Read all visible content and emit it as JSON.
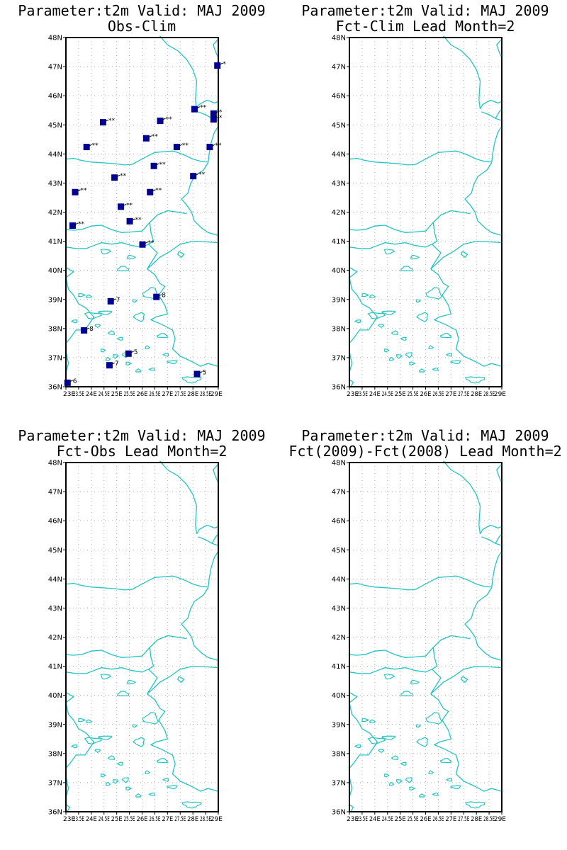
{
  "panels": [
    {
      "id": "obs-clim",
      "title_line1": "Parameter:t2m Valid: MAJ 2009",
      "title_line2": "Obs-Clim",
      "has_stations": true
    },
    {
      "id": "fct-clim",
      "title_line1": "Parameter:t2m Valid: MAJ 2009",
      "title_line2": "Fct-Clim Lead Month=2",
      "has_stations": false
    },
    {
      "id": "fct-obs",
      "title_line1": "Parameter:t2m Valid: MAJ 2009",
      "title_line2": "Fct-Obs Lead Month=2",
      "has_stations": false
    },
    {
      "id": "fct-diff",
      "title_line1": "Parameter:t2m Valid: MAJ 2009",
      "title_line2": "Fct(2009)-Fct(2008) Lead Month=2",
      "has_stations": false
    }
  ],
  "map": {
    "lat_labels": [
      "48N",
      "47N",
      "46N",
      "45N",
      "44N",
      "43N",
      "42N",
      "41N",
      "40N",
      "39N",
      "38N",
      "37N",
      "36N"
    ],
    "lon_labels": [
      "23E",
      "23.5E",
      "24E",
      "24.5E",
      "25E",
      "25.5E",
      "26E",
      "26.5E",
      "27E",
      "27.5E",
      "28E",
      "28.5E",
      "29E"
    ],
    "coast_color": "#22c5c5",
    "station_color": "#000090"
  },
  "stations": [
    {
      "lon": 28.95,
      "lat": 47.05,
      "label": "*"
    },
    {
      "lon": 28.05,
      "lat": 45.55,
      "label": "**"
    },
    {
      "lon": 28.8,
      "lat": 45.4,
      "label": "*"
    },
    {
      "lon": 28.8,
      "lat": 45.2,
      "label": "*"
    },
    {
      "lon": 24.45,
      "lat": 45.1,
      "label": "**"
    },
    {
      "lon": 26.7,
      "lat": 45.15,
      "label": "**"
    },
    {
      "lon": 26.15,
      "lat": 44.55,
      "label": "**"
    },
    {
      "lon": 23.8,
      "lat": 44.25,
      "label": "**"
    },
    {
      "lon": 27.35,
      "lat": 44.25,
      "label": "**"
    },
    {
      "lon": 28.65,
      "lat": 44.25,
      "label": "**"
    },
    {
      "lon": 26.45,
      "lat": 43.6,
      "label": "**"
    },
    {
      "lon": 24.9,
      "lat": 43.2,
      "label": "**"
    },
    {
      "lon": 28.0,
      "lat": 43.25,
      "label": "**"
    },
    {
      "lon": 23.35,
      "lat": 42.7,
      "label": "**"
    },
    {
      "lon": 26.3,
      "lat": 42.7,
      "label": "**"
    },
    {
      "lon": 25.15,
      "lat": 42.2,
      "label": "**"
    },
    {
      "lon": 25.5,
      "lat": 41.7,
      "label": "**"
    },
    {
      "lon": 23.25,
      "lat": 41.55,
      "label": "**"
    },
    {
      "lon": 26.0,
      "lat": 40.9,
      "label": "**"
    },
    {
      "lon": 26.55,
      "lat": 39.1,
      "label": "8"
    },
    {
      "lon": 24.75,
      "lat": 38.95,
      "label": "7"
    },
    {
      "lon": 23.7,
      "lat": 37.95,
      "label": "8"
    },
    {
      "lon": 25.45,
      "lat": 37.15,
      "label": "5"
    },
    {
      "lon": 24.7,
      "lat": 36.75,
      "label": "7"
    },
    {
      "lon": 28.15,
      "lat": 36.45,
      "label": "5"
    },
    {
      "lon": 23.05,
      "lat": 36.15,
      "label": "6"
    }
  ]
}
